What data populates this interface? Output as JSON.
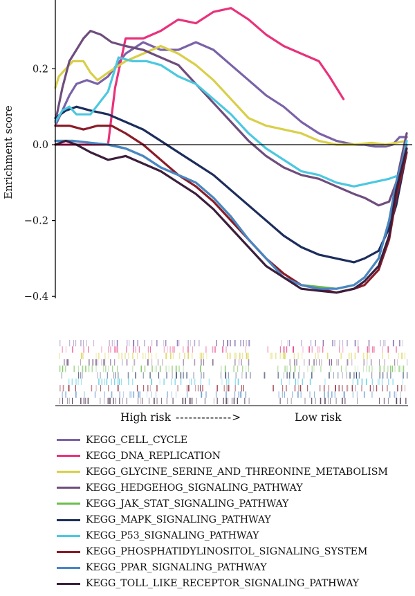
{
  "chart_data": {
    "type": "line",
    "title": "",
    "ylabel": "Enrichment score",
    "xlabel_left": "High risk",
    "xlabel_arrow": "------------->",
    "xlabel_right": "Low risk",
    "ylim": [
      -0.4,
      0.37
    ],
    "xlim": [
      0,
      1
    ],
    "yticks": [
      0.2,
      0.0,
      -0.2,
      -0.4
    ],
    "ytick_labels": [
      "0.2",
      "0.0",
      "−0.2",
      "−0.4"
    ],
    "grid": false,
    "legend_position": "bottom",
    "series": [
      {
        "name": "KEGG_CELL_CYCLE",
        "color": "#7a62a8",
        "x": [
          0,
          0.02,
          0.04,
          0.06,
          0.09,
          0.12,
          0.15,
          0.2,
          0.25,
          0.3,
          0.35,
          0.4,
          0.45,
          0.5,
          0.55,
          0.6,
          0.65,
          0.7,
          0.75,
          0.8,
          0.85,
          0.88,
          0.91,
          0.94,
          0.96,
          0.98,
          1
        ],
        "y": [
          0.05,
          0.09,
          0.13,
          0.16,
          0.17,
          0.16,
          0.18,
          0.24,
          0.27,
          0.25,
          0.25,
          0.27,
          0.25,
          0.21,
          0.17,
          0.13,
          0.1,
          0.06,
          0.03,
          0.01,
          0.0,
          0.0,
          -0.005,
          -0.005,
          0.0,
          0.02,
          0.02
        ]
      },
      {
        "name": "KEGG_DNA_REPLICATION",
        "color": "#e8327c",
        "x": [
          0,
          0.06,
          0.12,
          0.15,
          0.17,
          0.2,
          0.25,
          0.3,
          0.35,
          0.4,
          0.45,
          0.5,
          0.55,
          0.6,
          0.65,
          0.7,
          0.75,
          0.78,
          0.8,
          0.82
        ],
        "y": [
          0.0,
          0.0,
          0.0,
          0.0,
          0.15,
          0.28,
          0.28,
          0.3,
          0.33,
          0.32,
          0.35,
          0.36,
          0.33,
          0.29,
          0.26,
          0.24,
          0.22,
          0.18,
          0.15,
          0.12
        ]
      },
      {
        "name": "KEGG_GLYCINE_SERINE_AND_THREONINE_METABOLISM",
        "color": "#d9cf49",
        "x": [
          0,
          0.01,
          0.03,
          0.05,
          0.08,
          0.1,
          0.12,
          0.15,
          0.2,
          0.25,
          0.3,
          0.35,
          0.4,
          0.45,
          0.5,
          0.55,
          0.6,
          0.65,
          0.7,
          0.75,
          0.8,
          0.85,
          0.9,
          0.94,
          0.97,
          1
        ],
        "y": [
          0.15,
          0.18,
          0.2,
          0.22,
          0.22,
          0.19,
          0.17,
          0.19,
          0.22,
          0.24,
          0.26,
          0.24,
          0.21,
          0.17,
          0.12,
          0.07,
          0.05,
          0.04,
          0.03,
          0.01,
          0.0,
          0.0,
          0.005,
          0.0,
          0.005,
          0.01
        ]
      },
      {
        "name": "KEGG_HEDGEHOG_SIGNALING_PATHWAY",
        "color": "#6e4d7d",
        "x": [
          0,
          0.02,
          0.04,
          0.06,
          0.08,
          0.1,
          0.13,
          0.16,
          0.2,
          0.25,
          0.3,
          0.35,
          0.4,
          0.45,
          0.5,
          0.55,
          0.6,
          0.65,
          0.7,
          0.75,
          0.8,
          0.85,
          0.88,
          0.92,
          0.95,
          0.97,
          1
        ],
        "y": [
          0.06,
          0.15,
          0.22,
          0.25,
          0.28,
          0.3,
          0.29,
          0.27,
          0.26,
          0.25,
          0.23,
          0.21,
          0.16,
          0.11,
          0.06,
          0.01,
          -0.03,
          -0.06,
          -0.08,
          -0.09,
          -0.11,
          -0.13,
          -0.14,
          -0.16,
          -0.15,
          -0.1,
          0.03
        ]
      },
      {
        "name": "KEGG_JAK_STAT_SIGNALING_PATHWAY",
        "color": "#6cbd4b",
        "x": [
          0,
          0.05,
          0.1,
          0.15,
          0.2,
          0.25,
          0.3,
          0.35,
          0.4,
          0.45,
          0.5,
          0.55,
          0.6,
          0.65,
          0.7,
          0.75,
          0.8,
          0.85,
          0.88,
          0.92,
          0.95,
          0.97,
          1
        ],
        "y": [
          0.01,
          0.01,
          0.005,
          0.0,
          -0.01,
          -0.03,
          -0.06,
          -0.08,
          -0.1,
          -0.14,
          -0.19,
          -0.25,
          -0.3,
          -0.35,
          -0.37,
          -0.375,
          -0.38,
          -0.37,
          -0.35,
          -0.3,
          -0.2,
          -0.1,
          -0.01
        ]
      },
      {
        "name": "KEGG_MAPK_SIGNALING_PATHWAY",
        "color": "#1c2d5c",
        "x": [
          0,
          0.03,
          0.06,
          0.1,
          0.15,
          0.2,
          0.25,
          0.3,
          0.35,
          0.4,
          0.45,
          0.5,
          0.55,
          0.6,
          0.65,
          0.7,
          0.75,
          0.8,
          0.85,
          0.88,
          0.92,
          0.95,
          0.97,
          1
        ],
        "y": [
          0.07,
          0.09,
          0.1,
          0.09,
          0.08,
          0.06,
          0.04,
          0.01,
          -0.02,
          -0.05,
          -0.08,
          -0.12,
          -0.16,
          -0.2,
          -0.24,
          -0.27,
          -0.29,
          -0.3,
          -0.31,
          -0.3,
          -0.28,
          -0.22,
          -0.16,
          -0.02
        ]
      },
      {
        "name": "KEGG_P53_SIGNALING_PATHWAY",
        "color": "#4cc8e0",
        "x": [
          0,
          0.02,
          0.04,
          0.06,
          0.1,
          0.15,
          0.18,
          0.22,
          0.26,
          0.3,
          0.35,
          0.4,
          0.45,
          0.5,
          0.55,
          0.6,
          0.65,
          0.7,
          0.75,
          0.8,
          0.85,
          0.9,
          0.95,
          0.98,
          1
        ],
        "y": [
          0.06,
          0.09,
          0.1,
          0.08,
          0.08,
          0.14,
          0.23,
          0.22,
          0.22,
          0.21,
          0.18,
          0.16,
          0.12,
          0.08,
          0.03,
          -0.01,
          -0.04,
          -0.07,
          -0.08,
          -0.1,
          -0.11,
          -0.1,
          -0.09,
          -0.08,
          0.01
        ]
      },
      {
        "name": "KEGG_PHOSPHATIDYLINOSITOL_SIGNALING_SYSTEM",
        "color": "#8a1c28",
        "x": [
          0,
          0.04,
          0.08,
          0.12,
          0.16,
          0.2,
          0.25,
          0.3,
          0.35,
          0.4,
          0.45,
          0.5,
          0.55,
          0.6,
          0.65,
          0.7,
          0.75,
          0.8,
          0.85,
          0.88,
          0.92,
          0.95,
          0.97,
          1
        ],
        "y": [
          0.05,
          0.05,
          0.04,
          0.05,
          0.05,
          0.03,
          0.0,
          -0.04,
          -0.08,
          -0.11,
          -0.15,
          -0.2,
          -0.25,
          -0.3,
          -0.34,
          -0.37,
          -0.38,
          -0.39,
          -0.38,
          -0.37,
          -0.33,
          -0.25,
          -0.14,
          -0.02
        ]
      },
      {
        "name": "KEGG_PPAR_SIGNALING_PATHWAY",
        "color": "#4a86c5",
        "x": [
          0,
          0.05,
          0.1,
          0.15,
          0.2,
          0.25,
          0.3,
          0.35,
          0.4,
          0.45,
          0.5,
          0.55,
          0.6,
          0.65,
          0.7,
          0.75,
          0.8,
          0.85,
          0.88,
          0.92,
          0.95,
          0.97,
          1
        ],
        "y": [
          0.01,
          0.01,
          0.005,
          0.0,
          -0.01,
          -0.03,
          -0.06,
          -0.08,
          -0.1,
          -0.14,
          -0.19,
          -0.25,
          -0.3,
          -0.35,
          -0.37,
          -0.38,
          -0.38,
          -0.37,
          -0.35,
          -0.3,
          -0.2,
          -0.1,
          0.0
        ]
      },
      {
        "name": "KEGG_TOLL_LIKE_RECEPTOR_SIGNALING_PATHWAY",
        "color": "#3b1e3c",
        "x": [
          0,
          0.03,
          0.06,
          0.1,
          0.15,
          0.2,
          0.25,
          0.3,
          0.35,
          0.4,
          0.45,
          0.5,
          0.55,
          0.6,
          0.65,
          0.7,
          0.75,
          0.8,
          0.85,
          0.88,
          0.92,
          0.95,
          0.97,
          1
        ],
        "y": [
          0.0,
          0.01,
          0.0,
          -0.02,
          -0.04,
          -0.03,
          -0.05,
          -0.07,
          -0.1,
          -0.13,
          -0.17,
          -0.22,
          -0.27,
          -0.32,
          -0.35,
          -0.38,
          -0.385,
          -0.39,
          -0.38,
          -0.36,
          -0.32,
          -0.24,
          -0.12,
          -0.01
        ]
      }
    ]
  }
}
